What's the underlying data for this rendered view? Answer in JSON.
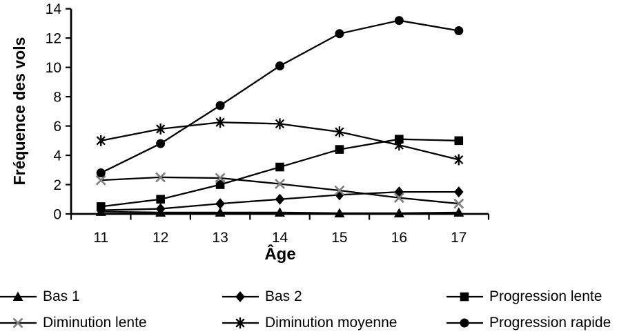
{
  "chart_data": {
    "type": "line",
    "title": "",
    "xlabel": "Âge",
    "ylabel": "Fréquence des vols",
    "x": [
      11,
      12,
      13,
      14,
      15,
      16,
      17
    ],
    "ylim": [
      0,
      14
    ],
    "ytick_step": 2,
    "grid": false,
    "legend_position": "bottom",
    "axis_color": "#000000",
    "gray_marker_color": "#7f7f7f",
    "series": [
      {
        "name": "Bas 1",
        "marker": "triangle",
        "color": "#000000",
        "marker_color": "#000000",
        "values": [
          0.15,
          0.1,
          0.1,
          0.1,
          0.05,
          0.05,
          0.1
        ]
      },
      {
        "name": "Bas 2",
        "marker": "diamond",
        "color": "#000000",
        "marker_color": "#000000",
        "values": [
          0.25,
          0.35,
          0.7,
          1.0,
          1.3,
          1.5,
          1.5
        ]
      },
      {
        "name": "Progression lente",
        "marker": "square",
        "color": "#000000",
        "marker_color": "#000000",
        "values": [
          0.5,
          1.0,
          2.0,
          3.2,
          4.4,
          5.1,
          5.0
        ]
      },
      {
        "name": "Diminution lente",
        "marker": "x",
        "color": "#000000",
        "marker_color": "#7f7f7f",
        "values": [
          2.3,
          2.5,
          2.45,
          2.05,
          1.6,
          1.1,
          0.7
        ]
      },
      {
        "name": "Diminution moyenne",
        "marker": "star",
        "color": "#000000",
        "marker_color": "#000000",
        "values": [
          5.0,
          5.8,
          6.25,
          6.15,
          5.6,
          4.7,
          3.7
        ]
      },
      {
        "name": "Progression rapide",
        "marker": "circle",
        "color": "#000000",
        "marker_color": "#000000",
        "values": [
          2.8,
          4.8,
          7.4,
          10.1,
          12.3,
          13.2,
          12.5
        ]
      }
    ]
  }
}
